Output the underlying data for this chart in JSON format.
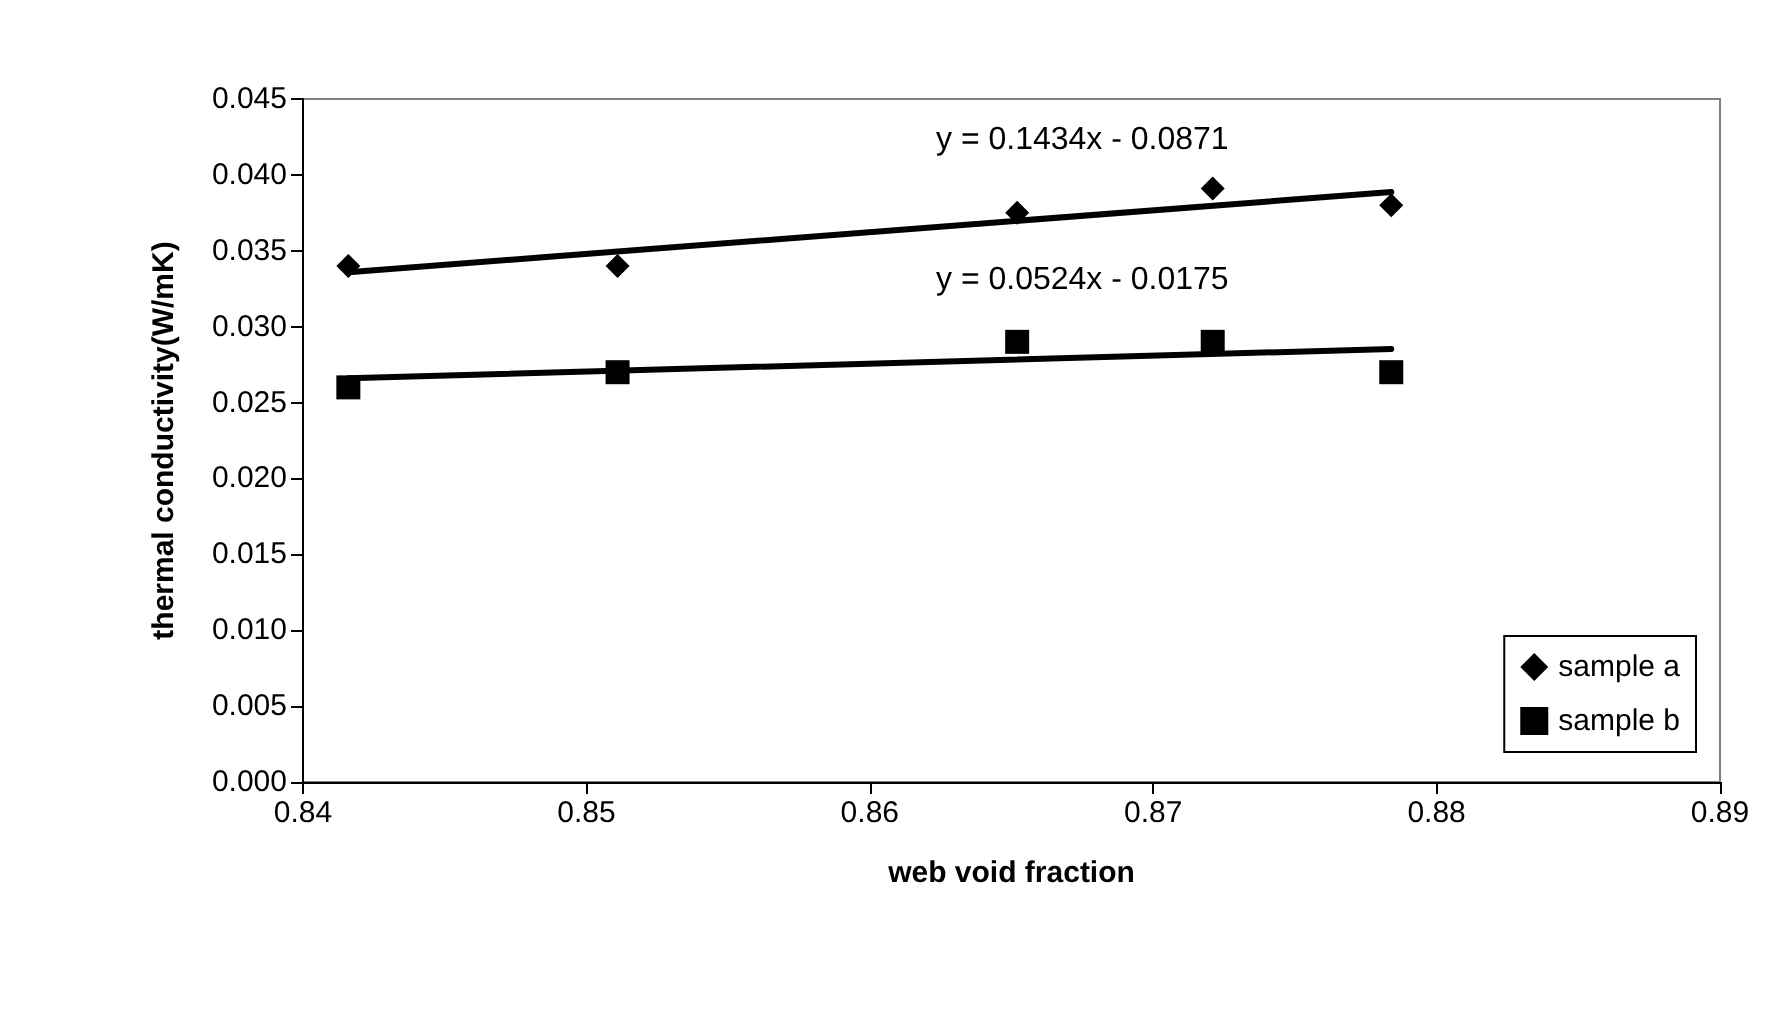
{
  "chart_data": {
    "type": "scatter",
    "xlabel": "web void fraction",
    "ylabel": "thermal conductivity(W/mK)",
    "xlim": [
      0.84,
      0.89
    ],
    "xticks": [
      0.84,
      0.85,
      0.86,
      0.87,
      0.88,
      0.89
    ],
    "ylim": [
      0,
      0.045
    ],
    "yticks": [
      {
        "value": 0,
        "label": "0.000"
      },
      {
        "value": 0.005,
        "label": "0.005"
      },
      {
        "value": 0.01,
        "label": "0.010"
      },
      {
        "value": 0.015,
        "label": "0.015"
      },
      {
        "value": 0.02,
        "label": "0.020"
      },
      {
        "value": 0.025,
        "label": "0.025"
      },
      {
        "value": 0.03,
        "label": "0.030"
      },
      {
        "value": 0.035,
        "label": "0.035"
      },
      {
        "value": 0.04,
        "label": "0.040"
      },
      {
        "value": 0.045,
        "label": "0.045"
      }
    ],
    "grid": false,
    "legend": "bottom right",
    "series": [
      {
        "name": "sample a",
        "color": "#000000",
        "marker": "diamond",
        "x": [
          0.8416,
          0.8511,
          0.8652,
          0.8721,
          0.8784
        ],
        "values": [
          0.034,
          0.034,
          0.0375,
          0.0391,
          0.038
        ]
      },
      {
        "name": "sample b",
        "color": "#000000",
        "marker": "square",
        "x": [
          0.8416,
          0.8511,
          0.8652,
          0.8721,
          0.8784
        ],
        "values": [
          0.026,
          0.027,
          0.029,
          0.029,
          0.027
        ]
      },
      {
        "type": "line",
        "color": "#000000",
        "marker": "none",
        "line_style": "solid",
        "x": [
          0.8416,
          0.8784
        ],
        "values": [
          0.03359,
          0.03887
        ]
      },
      {
        "type": "line",
        "color": "#000000",
        "marker": "none",
        "line_style": "solid",
        "x": [
          0.8416,
          0.8784
        ],
        "values": [
          0.0266,
          0.02853
        ]
      }
    ],
    "annotations": [
      "y = 0.1434x - 0.0871",
      "y = 0.0524x - 0.0175"
    ]
  }
}
